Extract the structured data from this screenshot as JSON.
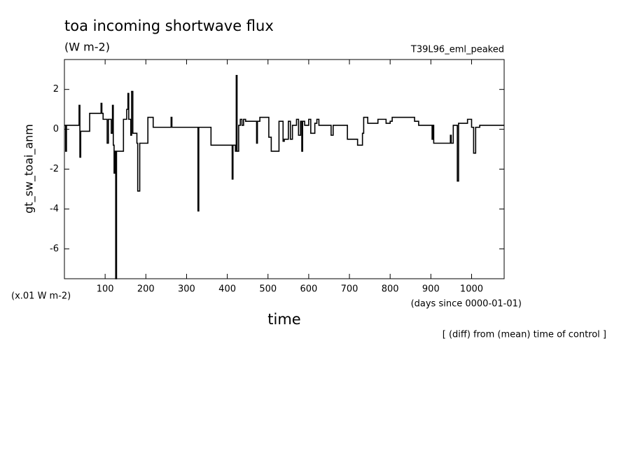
{
  "chart_data": {
    "type": "line",
    "title": "toa incoming shortwave flux",
    "subtitle": "(W m-2)",
    "experiment": "T39L96_eml_peaked",
    "y_label": "gt_sw_toai_anm",
    "y_units": "(x.01 W m-2)",
    "x_label": "time",
    "x_units": "(days since 0000-01-01)",
    "footnote": "[ (diff) from (mean) time of control ]",
    "step": "post",
    "xlim": [
      0,
      1080
    ],
    "xticks": [
      100,
      200,
      300,
      400,
      500,
      600,
      700,
      800,
      900,
      1000
    ],
    "ylim": [
      -7.5,
      3.5
    ],
    "yticks": [
      -6,
      -4,
      -2,
      0,
      2
    ],
    "series": [
      {
        "color": "#000000",
        "x": [
          0,
          3,
          5,
          36,
          38,
          40,
          62,
          90,
          92,
          95,
          105,
          108,
          115,
          118,
          120,
          122,
          124,
          126,
          128,
          145,
          153,
          156,
          158,
          163,
          165,
          168,
          178,
          180,
          185,
          205,
          218,
          262,
          264,
          328,
          330,
          360,
          412,
          414,
          420,
          422,
          424,
          428,
          432,
          436,
          440,
          445,
          472,
          474,
          480,
          502,
          508,
          527,
          537,
          540,
          550,
          555,
          560,
          570,
          575,
          580,
          583,
          585,
          590,
          600,
          605,
          615,
          620,
          625,
          655,
          660,
          695,
          720,
          732,
          735,
          745,
          770,
          790,
          800,
          805,
          860,
          870,
          903,
          905,
          907,
          948,
          950,
          955,
          965,
          968,
          990,
          1000,
          1005,
          1010,
          1020,
          1080
        ],
        "values": [
          0.2,
          -1.1,
          0.2,
          1.2,
          -1.4,
          -0.1,
          0.8,
          1.3,
          0.8,
          0.5,
          -0.7,
          0.5,
          -0.2,
          1.2,
          -0.8,
          -2.2,
          -1.1,
          -7.5,
          -1.1,
          0.5,
          1.0,
          1.8,
          0.5,
          -0.3,
          1.9,
          -0.2,
          -0.7,
          -3.1,
          -0.7,
          0.6,
          0.1,
          0.6,
          0.1,
          -4.1,
          0.1,
          -0.8,
          -2.5,
          -0.8,
          -1.1,
          2.7,
          -1.1,
          0.2,
          0.5,
          0.2,
          0.5,
          0.4,
          -0.7,
          0.4,
          0.6,
          -0.4,
          -1.1,
          0.4,
          -0.6,
          -0.5,
          0.4,
          -0.5,
          0.2,
          0.5,
          -0.3,
          0.4,
          -1.1,
          0.4,
          0.2,
          0.5,
          -0.2,
          0.3,
          0.5,
          0.2,
          -0.3,
          0.2,
          -0.5,
          -0.8,
          -0.2,
          0.6,
          0.3,
          0.5,
          0.3,
          0.4,
          0.6,
          0.4,
          0.2,
          -0.5,
          0.2,
          -0.7,
          -0.3,
          -0.7,
          0.2,
          -2.6,
          0.3,
          0.5,
          0.1,
          -1.2,
          0.1,
          0.2,
          0.2
        ]
      }
    ]
  }
}
